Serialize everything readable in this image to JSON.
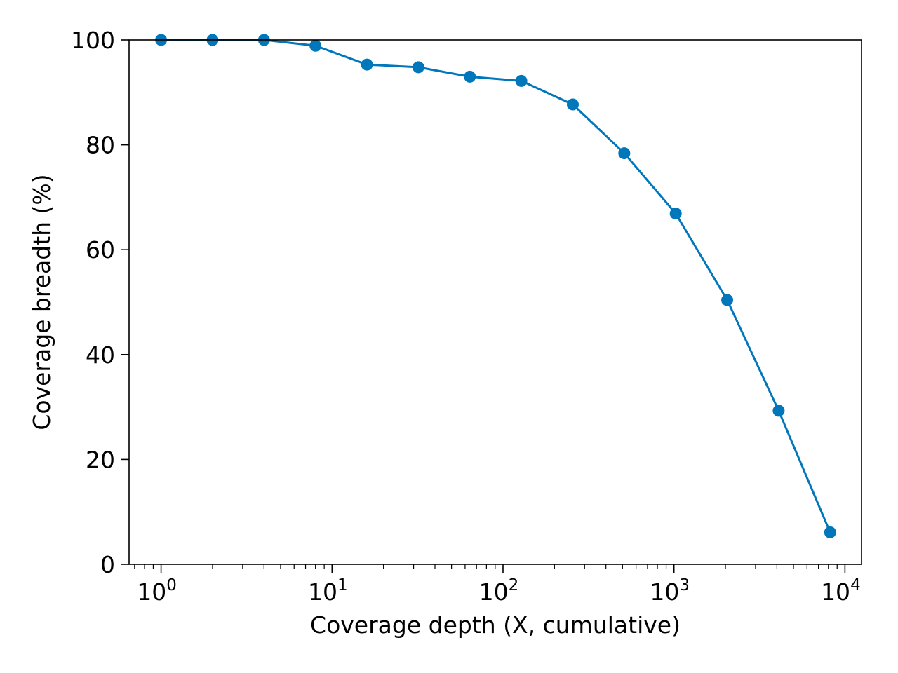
{
  "chart_data": {
    "type": "line",
    "title": "",
    "xlabel": "Coverage depth (X, cumulative)",
    "ylabel": "Coverage breadth (%)",
    "xscale": "log",
    "xlim": [
      0.65,
      12500
    ],
    "ylim": [
      0,
      100
    ],
    "grid": false,
    "legend": "none",
    "x_ticks": [
      {
        "base": "10",
        "exp": "0",
        "value": 1
      },
      {
        "base": "10",
        "exp": "1",
        "value": 10
      },
      {
        "base": "10",
        "exp": "2",
        "value": 100
      },
      {
        "base": "10",
        "exp": "3",
        "value": 1000
      },
      {
        "base": "10",
        "exp": "4",
        "value": 10000
      }
    ],
    "y_ticks": [
      "0",
      "20",
      "40",
      "60",
      "80",
      "100"
    ],
    "series": [
      {
        "color": "#0077bb",
        "marker": "circle",
        "x": [
          1,
          2,
          4,
          8,
          16,
          32,
          64,
          128,
          256,
          512,
          1024,
          2048,
          4096,
          8192
        ],
        "values": [
          100.0,
          100.0,
          100.0,
          98.9,
          95.3,
          94.8,
          93.0,
          92.2,
          87.7,
          78.4,
          66.9,
          50.4,
          29.3,
          6.1
        ]
      }
    ]
  }
}
